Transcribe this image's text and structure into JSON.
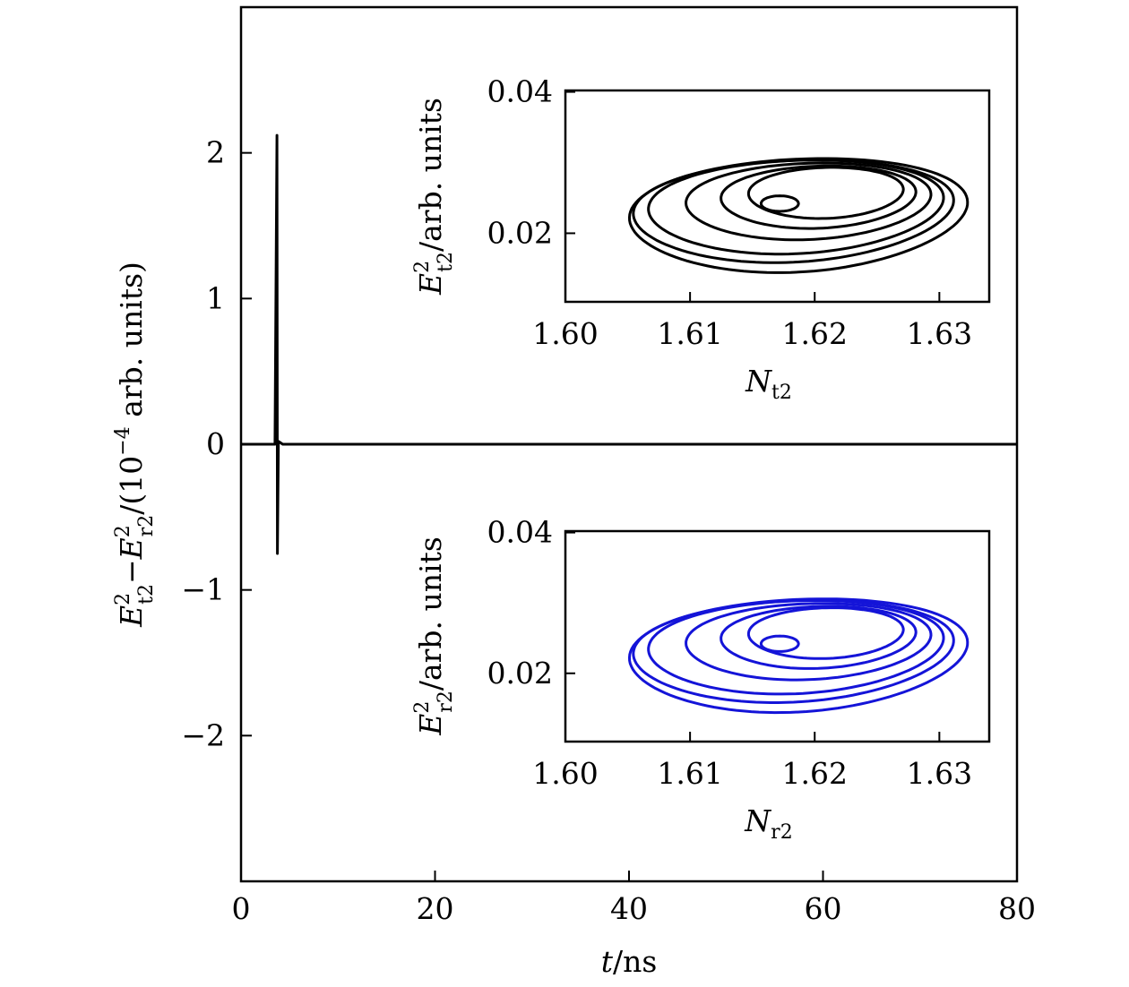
{
  "chart_data": [
    {
      "id": "main",
      "type": "line",
      "x_tick_labels": [
        "0",
        "20",
        "40",
        "60",
        "80"
      ],
      "x_ticks": [
        0,
        20,
        40,
        60,
        80
      ],
      "y_tick_labels": [
        "−2",
        "−1",
        "0",
        "1",
        "2"
      ],
      "y_ticks": [
        -2,
        -1,
        0,
        1,
        2
      ],
      "xlim": [
        0,
        80
      ],
      "ylim": [
        -3,
        3
      ],
      "xlabel_var": "t",
      "xlabel_rest": "/ns",
      "ylabel": {
        "var1": "E",
        "sup1": "2",
        "sub1": "t2",
        "minus": "−",
        "var2": "E",
        "sup2": "2",
        "sub2": "r2",
        "rest": "/(10",
        "exp": "−4",
        "rest2": " arb. units)"
      },
      "series": [
        {
          "color": "#000000",
          "points": [
            [
              0,
              0
            ],
            [
              3.5,
              0
            ],
            [
              3.7,
              2.12
            ],
            [
              3.75,
              -0.75
            ],
            [
              3.85,
              0.02
            ],
            [
              4.3,
              0
            ],
            [
              80,
              0
            ]
          ]
        }
      ]
    },
    {
      "id": "inset-top",
      "type": "line",
      "x_tick_labels": [
        "1.60",
        "1.61",
        "1.62",
        "1.63"
      ],
      "x_ticks": [
        1.6,
        1.61,
        1.62,
        1.63
      ],
      "y_tick_labels": [
        "0.02",
        "0.04"
      ],
      "y_ticks": [
        0.02,
        0.04
      ],
      "xlim": [
        1.6,
        1.634
      ],
      "ylim": [
        0.0103,
        0.0402
      ],
      "xlabel_var": "N",
      "xlabel_sub": "t2",
      "ylabel_var": "E",
      "ylabel_sup": "2",
      "ylabel_sub": "t2",
      "ylabel_rest": "/arb. units",
      "series": [
        {
          "color": "#000000",
          "description": "chaotic attractor loops"
        }
      ]
    },
    {
      "id": "inset-bottom",
      "type": "line",
      "x_tick_labels": [
        "1.60",
        "1.61",
        "1.62",
        "1.63"
      ],
      "x_ticks": [
        1.6,
        1.61,
        1.62,
        1.63
      ],
      "y_tick_labels": [
        "0.02",
        "0.04"
      ],
      "y_ticks": [
        0.02,
        0.04
      ],
      "xlim": [
        1.6,
        1.634
      ],
      "ylim": [
        0.0103,
        0.0402
      ],
      "xlabel_var": "N",
      "xlabel_sub": "r2",
      "ylabel_var": "E",
      "ylabel_sup": "2",
      "ylabel_sub": "r2",
      "ylabel_rest": "/arb. units",
      "series": [
        {
          "color": "#1414d8",
          "description": "chaotic attractor loops"
        }
      ]
    }
  ]
}
